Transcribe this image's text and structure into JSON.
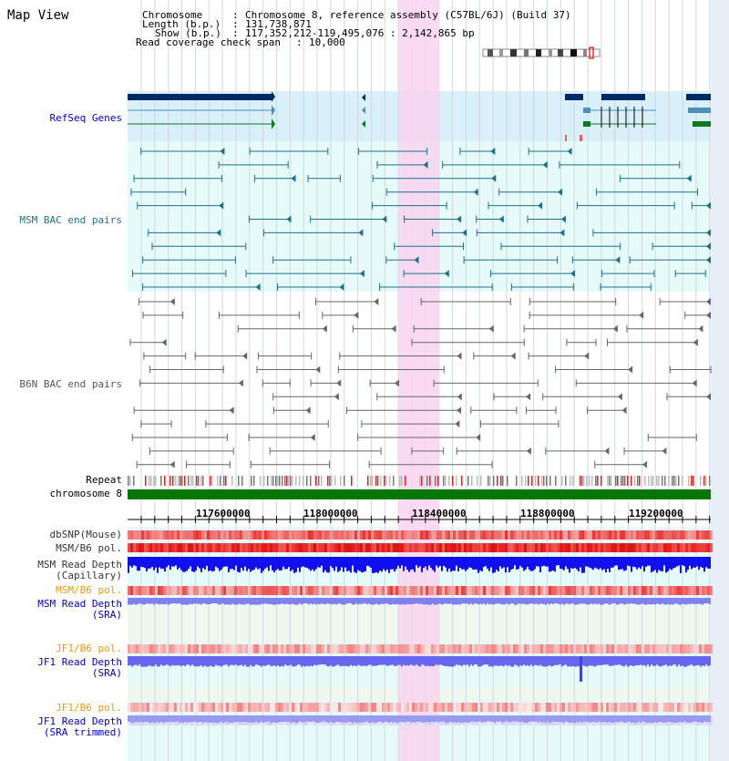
{
  "title": "Map View",
  "header": {
    "chromosome_label": "Chromosome",
    "chromosome_value": "Chromosome 8, reference assembly (C57BL/6J) (Build 37)",
    "length_label": "Length (b.p.)",
    "length_value": "131,738,871",
    "show_label": "Show (b.p.)",
    "show_value": "117,352,212-119,495,076 : 2,142,865 bp",
    "coverage_label": "Read coverage check span",
    "coverage_value": "10,000"
  },
  "tracks": {
    "refseq": "RefSeq Genes",
    "msm_bac": "MSM BAC end pairs",
    "b6n_bac": "B6N BAC end pairs",
    "repeat": "Repeat",
    "chromosome": "chromosome 8",
    "dbsnp": "dbSNP(Mouse)",
    "msm_b6_pol": "MSM/B6 pol.",
    "msm_depth_cap_1": "MSM Read Depth",
    "msm_depth_cap_2": "(Capillary)",
    "msm_b6_pol_2": "MSM/B6 pol.",
    "msm_depth_sra_1": "MSM Read Depth",
    "msm_depth_sra_2": "(SRA)",
    "jf1_b6_pol": "JF1/B6 pol.",
    "jf1_depth_sra_1": "JF1 Read Depth",
    "jf1_depth_sra_2": "(SRA)",
    "jf1_b6_pol_2": "JF1/B6 pol.",
    "jf1_depth_trim_1": "JF1 Read Depth",
    "jf1_depth_trim_2": "(SRA trimmed)"
  },
  "axis": {
    "ticks": [
      "117600000",
      "118000000",
      "118400000",
      "118800000",
      "119200000"
    ]
  },
  "colors": {
    "refseq_bg": "#d9effa",
    "refseq_label": "#0000cc",
    "msm_bg": "#e6fafa",
    "msm_color": "#1f6f8b",
    "b6n_color": "#666666",
    "highlight": "#f8d4f0",
    "chromosome_bar": "#007700",
    "snp_red": "#dd2222",
    "depth_blue": "#0000ee",
    "depth_light_blue": "#8080ff",
    "orange_label": "#ee9900",
    "jf1_bg": "#eef8ee"
  }
}
